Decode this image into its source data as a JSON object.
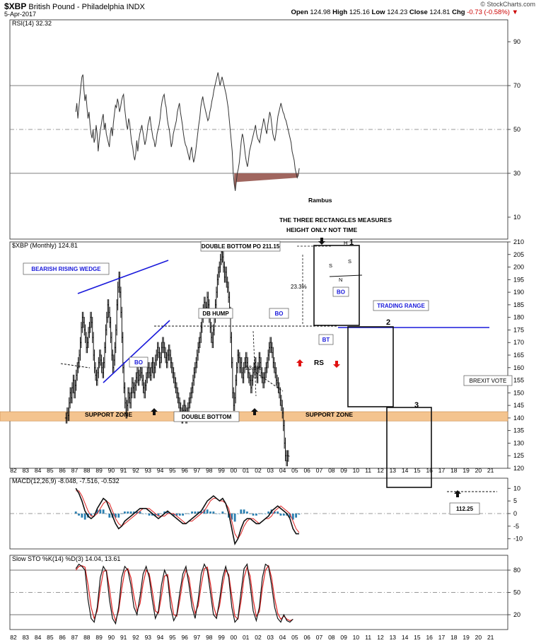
{
  "header": {
    "symbol": "$XBP",
    "name": "British Pound - Philadelphia INDX",
    "date": "5-Apr-2017",
    "credit": "© StockCharts.com",
    "open_label": "Open",
    "open": "124.98",
    "high_label": "High",
    "high": "125.16",
    "low_label": "Low",
    "low": "124.23",
    "close_label": "Close",
    "close": "124.81",
    "chg_label": "Chg",
    "chg": "-0.73 (-0.58%)"
  },
  "colors": {
    "price": "#111111",
    "annotation_blue": "#1a1adb",
    "support_fill": "#f4c48f",
    "macd_hist": "#2b7fb0",
    "signal_red": "#dd2222",
    "rsi_fill": "#a0665f",
    "arrow_red": "#e01010"
  },
  "chart_data": [
    {
      "type": "line",
      "panel": "rsi",
      "label": "RSI(14) 32.32",
      "ylim": [
        0,
        100
      ],
      "ticks": [
        10,
        30,
        50,
        70,
        90
      ],
      "reference_lines": [
        30,
        50,
        70
      ],
      "x_start": 1987.1,
      "x_step": 0.083,
      "values": [
        58,
        62,
        55,
        60,
        65,
        70,
        74,
        75,
        68,
        63,
        66,
        60,
        55,
        58,
        52,
        48,
        46,
        50,
        44,
        46,
        52,
        48,
        40,
        45,
        49,
        52,
        55,
        57,
        50,
        53,
        48,
        46,
        44,
        42,
        48,
        51,
        47,
        53,
        57,
        61,
        60,
        64,
        62,
        58,
        60,
        63,
        65,
        66,
        60,
        56,
        52,
        50,
        55,
        53,
        48,
        44,
        42,
        38,
        36,
        39,
        45,
        40,
        45,
        48,
        50,
        52,
        49,
        46,
        43,
        45,
        48,
        52,
        54,
        56,
        52,
        49,
        46,
        45,
        42,
        44,
        48,
        50,
        52,
        55,
        60,
        63,
        65,
        66,
        62,
        60,
        55,
        52,
        50,
        46,
        42,
        44,
        48,
        50,
        52,
        54,
        58,
        60,
        62,
        58,
        55,
        52,
        48,
        45,
        43,
        42,
        40,
        38,
        36,
        40,
        42,
        38,
        35,
        37,
        40,
        44,
        48,
        52,
        55,
        60,
        63,
        65,
        62,
        60,
        58,
        56,
        54,
        55,
        58,
        60,
        63,
        65,
        68,
        70,
        72,
        74,
        76,
        73,
        70,
        72,
        74,
        72,
        70,
        68,
        66,
        63,
        60,
        55,
        50,
        45,
        40,
        30,
        25,
        22,
        26,
        30,
        32,
        35,
        40,
        45,
        48,
        46,
        42,
        38,
        35,
        33,
        36,
        40,
        42,
        44,
        46,
        48,
        50,
        52,
        48,
        46,
        45,
        44,
        47,
        50,
        52,
        55,
        53,
        50,
        48,
        52,
        55,
        58,
        56,
        52,
        48,
        46,
        45,
        48,
        52,
        56,
        58,
        60,
        62,
        60,
        58,
        57,
        55,
        54,
        52,
        50,
        48,
        46,
        44,
        40,
        38,
        36,
        32,
        30,
        28,
        29,
        32.32
      ]
    },
    {
      "type": "candlestick",
      "panel": "price",
      "label": "$XBP (Monthly) 124.81",
      "ylim": [
        120,
        210
      ],
      "ticks": [
        120,
        125,
        130,
        135,
        140,
        145,
        150,
        155,
        160,
        165,
        170,
        175,
        180,
        185,
        190,
        195,
        200,
        205,
        210
      ],
      "x_ticks": [
        "82",
        "83",
        "84",
        "85",
        "86",
        "87",
        "88",
        "89",
        "90",
        "91",
        "92",
        "93",
        "94",
        "95",
        "96",
        "97",
        "98",
        "99",
        "00",
        "01",
        "02",
        "03",
        "04",
        "05",
        "06",
        "07",
        "08",
        "09",
        "10",
        "11",
        "12",
        "13",
        "14",
        "15",
        "16",
        "17",
        "18",
        "19",
        "20",
        "21"
      ],
      "x_start": 1986.3,
      "x_step": 0.083,
      "values": [
        140,
        142,
        141,
        146,
        150,
        148,
        152,
        155,
        150,
        153,
        157,
        160,
        162,
        165,
        170,
        176,
        180,
        178,
        175,
        172,
        168,
        170,
        174,
        176,
        180,
        178,
        172,
        165,
        160,
        157,
        155,
        158,
        162,
        165,
        163,
        160,
        158,
        162,
        168,
        175,
        180,
        185,
        182,
        178,
        172,
        165,
        160,
        163,
        168,
        175,
        185,
        192,
        196,
        190,
        182,
        172,
        160,
        152,
        146,
        142,
        145,
        150,
        148,
        146,
        150,
        154,
        152,
        150,
        153,
        156,
        158,
        155,
        157,
        160,
        158,
        155,
        152,
        150,
        153,
        156,
        158,
        160,
        158,
        157,
        160,
        162,
        158,
        160,
        163,
        165,
        168,
        166,
        162,
        164,
        168,
        170,
        168,
        166,
        164,
        162,
        165,
        167,
        165,
        162,
        160,
        158,
        156,
        154,
        152,
        150,
        148,
        146,
        144,
        142,
        140,
        143,
        145,
        143,
        140,
        142,
        144,
        146,
        148,
        150,
        152,
        155,
        158,
        160,
        162,
        165,
        168,
        170,
        172,
        176,
        180,
        183,
        186,
        182,
        184,
        188,
        185,
        180,
        176,
        172,
        170,
        175,
        180,
        185,
        190,
        195,
        198,
        200,
        203,
        206,
        204,
        200,
        196,
        198,
        194,
        192,
        188,
        182,
        172,
        162,
        150,
        145,
        148,
        155,
        160,
        165,
        164,
        160,
        162,
        158,
        156,
        160,
        162,
        164,
        162,
        158,
        156,
        155,
        152,
        155,
        158,
        160,
        162,
        158,
        156,
        160,
        164,
        162,
        158,
        156,
        154,
        156,
        158,
        160,
        162,
        165,
        168,
        170,
        168,
        166,
        162,
        160,
        158,
        155,
        154,
        152,
        150,
        147,
        145,
        142,
        137,
        130,
        125,
        123,
        125,
        124.81
      ],
      "annotations": [
        "BEARISH RISING WEDGE",
        "DB HUMP",
        "BO",
        "23.3%",
        "23.3%",
        "DOUBLE BOTTOM PO 211.15",
        "THE THREE RECTANGLES MEASURES",
        "HEIGHT ONLY NOT TIME",
        "TRADING RANGE",
        "BO",
        "BT",
        "RS",
        "H",
        "S",
        "S",
        "N",
        "BO",
        "SUPPORT ZONE",
        "SUPPORT ZONE",
        "DOUBLE BOTTOM",
        "BREXIT VOTE",
        "112.25",
        "Rambus",
        "1",
        "2",
        "3"
      ]
    },
    {
      "type": "line",
      "panel": "macd",
      "label": "MACD(12,26,9) -8.048, -7.516, -0.532",
      "ylim": [
        -14,
        14
      ],
      "ticks": [
        -10,
        -5,
        0,
        5,
        10
      ],
      "x_start": 1987.1,
      "x_step": 0.25,
      "series": [
        {
          "name": "MACD",
          "values": [
            10,
            8,
            5,
            1,
            -1,
            -2,
            -1,
            2,
            4,
            6,
            5,
            2,
            -1,
            -4,
            -6,
            -5,
            -3,
            -2,
            -1,
            0,
            1,
            2,
            2,
            2,
            1,
            0,
            -1,
            -2,
            -1,
            0,
            1,
            0,
            -1,
            -2,
            -3,
            -4,
            -4,
            -3,
            -2,
            -1,
            0,
            1,
            3,
            5,
            6,
            7,
            6,
            5,
            6,
            4,
            0,
            -6,
            -12,
            -10,
            -6,
            -3,
            -2,
            -2,
            -3,
            -4,
            -4,
            -3,
            -2,
            -1,
            1,
            2,
            3,
            2,
            1,
            0,
            -2,
            -6,
            -8,
            -8
          ]
        },
        {
          "name": "Signal",
          "values": [
            9,
            9,
            7,
            4,
            1,
            -1,
            -1,
            0,
            2,
            4,
            5,
            4,
            1,
            -2,
            -4,
            -5,
            -4,
            -3,
            -2,
            -1,
            0,
            1,
            2,
            2,
            2,
            1,
            0,
            -1,
            -1,
            -1,
            0,
            0,
            0,
            -1,
            -2,
            -3,
            -4,
            -3,
            -3,
            -2,
            -1,
            0,
            1,
            3,
            5,
            6,
            6,
            5,
            5,
            4,
            2,
            -3,
            -8,
            -10,
            -8,
            -5,
            -3,
            -2,
            -2,
            -3,
            -4,
            -3,
            -2,
            -2,
            -1,
            1,
            2,
            3,
            2,
            1,
            0,
            -3,
            -6,
            -7.516
          ]
        }
      ]
    },
    {
      "type": "line",
      "panel": "stochastic",
      "label": "Slow STO %K(14) %D(3) 14.04, 13.61",
      "ylim": [
        0,
        100
      ],
      "ticks": [
        20,
        50,
        80
      ],
      "x_start": 1987.1,
      "x_step": 0.25,
      "series": [
        {
          "name": "%K",
          "values": [
            82,
            88,
            85,
            80,
            40,
            15,
            10,
            30,
            70,
            85,
            78,
            40,
            15,
            8,
            30,
            70,
            85,
            80,
            60,
            30,
            20,
            45,
            75,
            85,
            70,
            40,
            15,
            25,
            60,
            80,
            70,
            30,
            12,
            20,
            50,
            75,
            85,
            60,
            30,
            15,
            40,
            75,
            88,
            80,
            50,
            20,
            15,
            40,
            70,
            85,
            70,
            30,
            10,
            15,
            50,
            82,
            88,
            60,
            25,
            12,
            30,
            70,
            88,
            85,
            60,
            30,
            15,
            10,
            20,
            12,
            10,
            14.04
          ]
        },
        {
          "name": "%D",
          "values": [
            80,
            85,
            86,
            84,
            60,
            30,
            15,
            25,
            55,
            78,
            80,
            55,
            25,
            12,
            25,
            55,
            78,
            82,
            70,
            45,
            25,
            35,
            62,
            80,
            75,
            52,
            25,
            22,
            45,
            72,
            74,
            45,
            20,
            18,
            40,
            66,
            80,
            70,
            42,
            22,
            32,
            60,
            82,
            84,
            62,
            32,
            18,
            32,
            60,
            80,
            74,
            45,
            18,
            14,
            38,
            70,
            84,
            72,
            40,
            18,
            24,
            56,
            80,
            86,
            70,
            42,
            22,
            14,
            18,
            14,
            12,
            13.61
          ]
        }
      ]
    }
  ]
}
